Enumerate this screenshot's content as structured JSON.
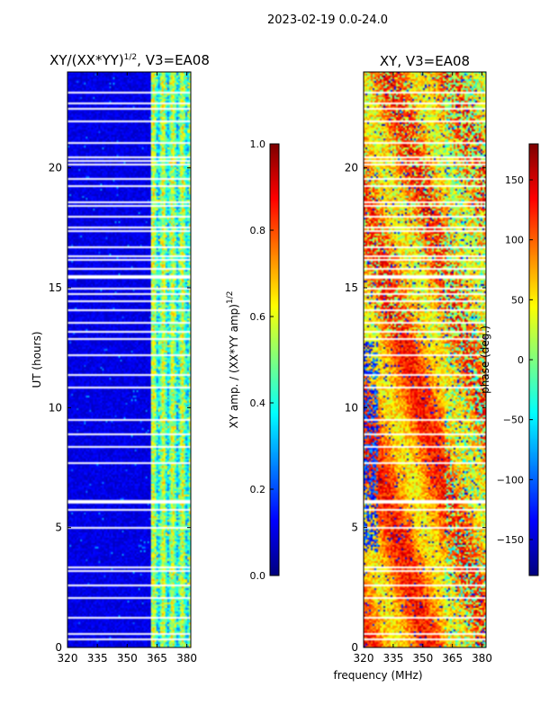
{
  "suptitle": "2023-02-19 0.0-24.0",
  "chart_data": [
    {
      "type": "heatmap",
      "title_prefix": "XY/(XX*YY)",
      "title_sup": "1/2",
      "title_suffix": ", V3=EA08",
      "xlabel": "",
      "ylabel": "UT (hours)",
      "xlim": [
        320,
        382
      ],
      "ylim": [
        0,
        24
      ],
      "xticks": [
        320,
        335,
        350,
        365,
        380
      ],
      "yticks": [
        0,
        5,
        10,
        15,
        20
      ],
      "colorbar": {
        "label_prefix": "XY amp. / (XX*YY amp)",
        "label_sup": "1/2",
        "range": [
          0.0,
          1.0
        ],
        "ticks": [
          "0.0",
          "0.2",
          "0.4",
          "0.6",
          "0.8",
          "1.0"
        ]
      },
      "description": "normalized cross-correlation amplitude; low (~0.1) below 362 MHz, elevated (0.3-0.7) in 362-380 MHz band",
      "flagged_hours_sample": [
        0.6,
        1.3,
        2.1,
        2.6,
        3.2,
        3.4,
        5.0,
        5.8,
        6.1,
        8.4,
        8.9,
        10.9,
        11.4,
        12.9,
        13.2,
        13.6,
        14.1,
        14.5,
        15.0,
        15.5,
        15.8,
        16.7,
        17.4,
        18.0,
        18.6,
        19.3,
        20.2,
        21.1,
        22.0,
        22.7,
        23.2
      ]
    },
    {
      "type": "heatmap",
      "title": "XY, V3=EA08",
      "xlabel": "frequency (MHz)",
      "ylabel": "",
      "xlim": [
        320,
        382
      ],
      "ylim": [
        0,
        24
      ],
      "xticks": [
        320,
        335,
        350,
        365,
        380
      ],
      "yticks": [
        0,
        5,
        10,
        15,
        20
      ],
      "colorbar": {
        "label": "phase (deg.)",
        "range": [
          -180,
          180
        ],
        "ticks": [
          "150",
          "100",
          "50",
          "0",
          "−50",
          "−100",
          "−150"
        ]
      },
      "description": "cross-correlation phase; mostly 50-150 deg with scattered -180 to 0 regions"
    }
  ],
  "colors": {
    "jet_low": "#00008f",
    "jet_high": "#800000"
  }
}
